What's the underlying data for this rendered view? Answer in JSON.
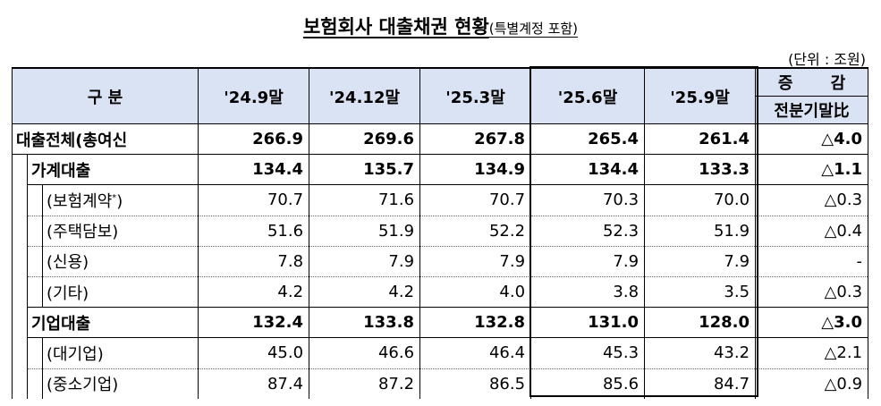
{
  "title": {
    "main": "보험회사 대출채권 현황",
    "sub": "(특별계정 포함)"
  },
  "unit": "(단위 : 조원)",
  "headers": {
    "category": "구 분",
    "periods": [
      "'24.9말",
      "'24.12말",
      "'25.3말",
      "'25.6말",
      "'25.9말"
    ],
    "change_top": "증 감",
    "change_bottom": "전분기말比"
  },
  "rows": [
    {
      "label": "대출전체(총여신",
      "values": [
        "266.9",
        "269.6",
        "267.8",
        "265.4",
        "261.4"
      ],
      "change": "△4.0"
    },
    {
      "label": "가계대출",
      "values": [
        "134.4",
        "135.7",
        "134.9",
        "134.4",
        "133.3"
      ],
      "change": "△1.1"
    },
    {
      "label": "(보험계약",
      "sup": "*",
      "label_close": ")",
      "values": [
        "70.7",
        "71.6",
        "70.7",
        "70.3",
        "70.0"
      ],
      "change": "△0.3"
    },
    {
      "label": "(주택담보)",
      "values": [
        "51.6",
        "51.9",
        "52.2",
        "52.3",
        "51.9"
      ],
      "change": "△0.4"
    },
    {
      "label": "(신용)",
      "values": [
        "7.8",
        "7.9",
        "7.9",
        "7.9",
        "7.9"
      ],
      "change": "-"
    },
    {
      "label": "(기타)",
      "values": [
        "4.2",
        "4.2",
        "4.0",
        "3.8",
        "3.5"
      ],
      "change": "△0.3"
    },
    {
      "label": "기업대출",
      "values": [
        "132.4",
        "133.8",
        "132.8",
        "131.0",
        "128.0"
      ],
      "change": "△3.0"
    },
    {
      "label": "(대기업)",
      "values": [
        "45.0",
        "46.6",
        "46.4",
        "45.3",
        "43.2"
      ],
      "change": "△2.1"
    },
    {
      "label": "(중소기업)",
      "values": [
        "87.4",
        "87.2",
        "86.5",
        "85.6",
        "84.7"
      ],
      "change": "△0.9"
    }
  ]
}
